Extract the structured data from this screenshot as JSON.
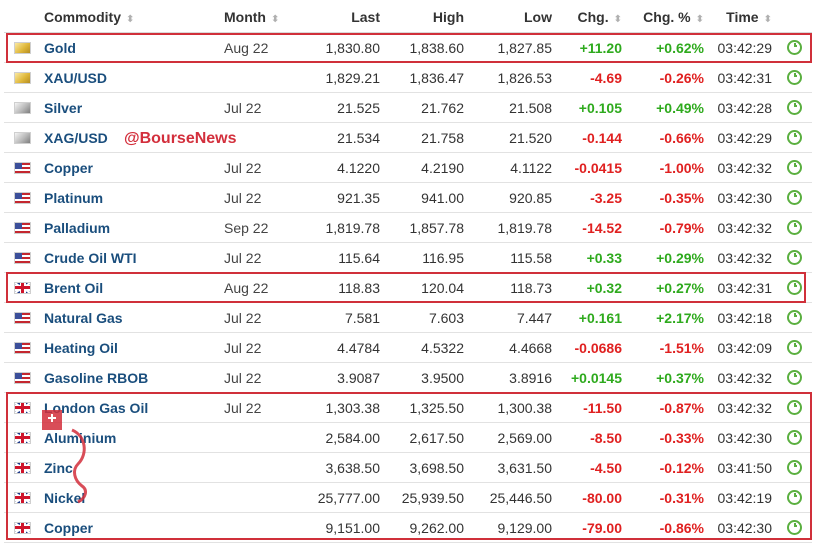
{
  "columns": [
    "Commodity",
    "Month",
    "Last",
    "High",
    "Low",
    "Chg.",
    "Chg. %",
    "Time"
  ],
  "watermark": "@BourseNews",
  "accent_color": "#d0303a",
  "positive_color": "#2eaa1d",
  "negative_color": "#e02020",
  "rows": [
    {
      "flag": "gold",
      "name": "Gold",
      "month": "Aug 22",
      "last": "1,830.80",
      "high": "1,838.60",
      "low": "1,827.85",
      "chg": "+11.20",
      "chgpct": "+0.62%",
      "time": "03:42:29",
      "dir": "pos"
    },
    {
      "flag": "gold",
      "name": "XAU/USD",
      "month": "",
      "last": "1,829.21",
      "high": "1,836.47",
      "low": "1,826.53",
      "chg": "-4.69",
      "chgpct": "-0.26%",
      "time": "03:42:31",
      "dir": "neg"
    },
    {
      "flag": "silver",
      "name": "Silver",
      "month": "Jul 22",
      "last": "21.525",
      "high": "21.762",
      "low": "21.508",
      "chg": "+0.105",
      "chgpct": "+0.49%",
      "time": "03:42:28",
      "dir": "pos"
    },
    {
      "flag": "silver",
      "name": "XAG/USD",
      "month": "",
      "last": "21.534",
      "high": "21.758",
      "low": "21.520",
      "chg": "-0.144",
      "chgpct": "-0.66%",
      "time": "03:42:29",
      "dir": "neg"
    },
    {
      "flag": "us",
      "name": "Copper",
      "month": "Jul 22",
      "last": "4.1220",
      "high": "4.2190",
      "low": "4.1122",
      "chg": "-0.0415",
      "chgpct": "-1.00%",
      "time": "03:42:32",
      "dir": "neg"
    },
    {
      "flag": "us",
      "name": "Platinum",
      "month": "Jul 22",
      "last": "921.35",
      "high": "941.00",
      "low": "920.85",
      "chg": "-3.25",
      "chgpct": "-0.35%",
      "time": "03:42:30",
      "dir": "neg"
    },
    {
      "flag": "us",
      "name": "Palladium",
      "month": "Sep 22",
      "last": "1,819.78",
      "high": "1,857.78",
      "low": "1,819.78",
      "chg": "-14.52",
      "chgpct": "-0.79%",
      "time": "03:42:32",
      "dir": "neg"
    },
    {
      "flag": "us",
      "name": "Crude Oil WTI",
      "month": "Jul 22",
      "last": "115.64",
      "high": "116.95",
      "low": "115.58",
      "chg": "+0.33",
      "chgpct": "+0.29%",
      "time": "03:42:32",
      "dir": "pos"
    },
    {
      "flag": "uk",
      "name": "Brent Oil",
      "month": "Aug 22",
      "last": "118.83",
      "high": "120.04",
      "low": "118.73",
      "chg": "+0.32",
      "chgpct": "+0.27%",
      "time": "03:42:31",
      "dir": "pos"
    },
    {
      "flag": "us",
      "name": "Natural Gas",
      "month": "Jul 22",
      "last": "7.581",
      "high": "7.603",
      "low": "7.447",
      "chg": "+0.161",
      "chgpct": "+2.17%",
      "time": "03:42:18",
      "dir": "pos"
    },
    {
      "flag": "us",
      "name": "Heating Oil",
      "month": "Jul 22",
      "last": "4.4784",
      "high": "4.5322",
      "low": "4.4668",
      "chg": "-0.0686",
      "chgpct": "-1.51%",
      "time": "03:42:09",
      "dir": "neg"
    },
    {
      "flag": "us",
      "name": "Gasoline RBOB",
      "month": "Jul 22",
      "last": "3.9087",
      "high": "3.9500",
      "low": "3.8916",
      "chg": "+0.0145",
      "chgpct": "+0.37%",
      "time": "03:42:32",
      "dir": "pos"
    },
    {
      "flag": "uk",
      "name": "London Gas Oil",
      "month": "Jul 22",
      "last": "1,303.38",
      "high": "1,325.50",
      "low": "1,300.38",
      "chg": "-11.50",
      "chgpct": "-0.87%",
      "time": "03:42:32",
      "dir": "neg"
    },
    {
      "flag": "uk",
      "name": "Aluminium",
      "month": "",
      "last": "2,584.00",
      "high": "2,617.50",
      "low": "2,569.00",
      "chg": "-8.50",
      "chgpct": "-0.33%",
      "time": "03:42:30",
      "dir": "neg"
    },
    {
      "flag": "uk",
      "name": "Zinc",
      "month": "",
      "last": "3,638.50",
      "high": "3,698.50",
      "low": "3,631.50",
      "chg": "-4.50",
      "chgpct": "-0.12%",
      "time": "03:41:50",
      "dir": "neg"
    },
    {
      "flag": "uk",
      "name": "Nickel",
      "month": "",
      "last": "25,777.00",
      "high": "25,939.50",
      "low": "25,446.50",
      "chg": "-80.00",
      "chgpct": "-0.31%",
      "time": "03:42:19",
      "dir": "neg"
    },
    {
      "flag": "uk",
      "name": "Copper",
      "month": "",
      "last": "9,151.00",
      "high": "9,262.00",
      "low": "9,129.00",
      "chg": "-79.00",
      "chgpct": "-0.86%",
      "time": "03:42:30",
      "dir": "neg"
    }
  ]
}
